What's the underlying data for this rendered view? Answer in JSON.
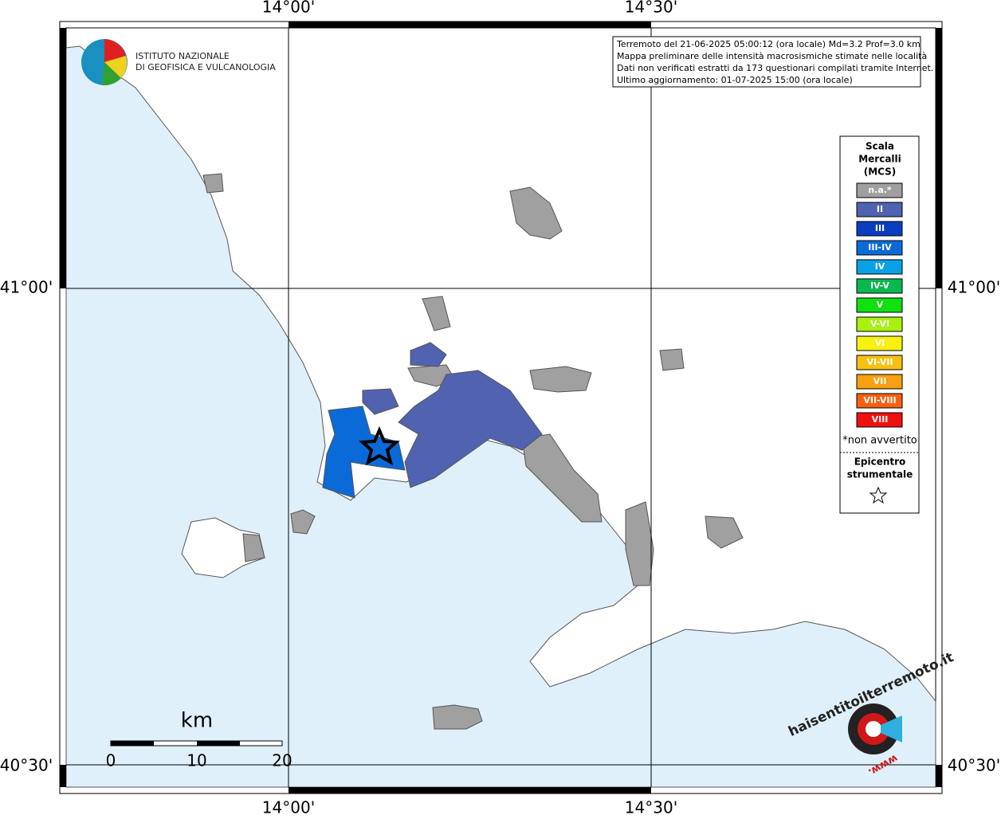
{
  "axes": {
    "lon": [
      "14°00'",
      "14°30'"
    ],
    "lat": [
      "41°00'",
      "40°30'"
    ]
  },
  "logo": {
    "line1": "ISTITUTO NAZIONALE",
    "line2": "DI GEOFISICA E VULCANOLOGIA"
  },
  "info": [
    "Terremoto del 21-06-2025 05:00:12 (ora locale) Md=3.2 Prof=3.0 km",
    "Mappa preliminare delle intensità macrosismiche stimate nelle località",
    "Dati non verificati estratti da 173 questionari compilati tramite Internet.",
    "Ultimo aggiornamento: 01-07-2025 15:00 (ora locale)"
  ],
  "legend": {
    "title": [
      "Scala",
      "Mercalli",
      "(MCS)"
    ],
    "items": [
      {
        "label": "n.a.*",
        "color": "#a0a0a0"
      },
      {
        "label": "II",
        "color": "#5062b0"
      },
      {
        "label": "III",
        "color": "#0a3ec0"
      },
      {
        "label": "III-IV",
        "color": "#0a6ad8"
      },
      {
        "label": "IV",
        "color": "#0aa0e6"
      },
      {
        "label": "IV-V",
        "color": "#0ab850"
      },
      {
        "label": "V",
        "color": "#10e010"
      },
      {
        "label": "V-VI",
        "color": "#a8f010"
      },
      {
        "label": "VI",
        "color": "#f8f010"
      },
      {
        "label": "VI-VII",
        "color": "#f8c010"
      },
      {
        "label": "VII",
        "color": "#f8a010"
      },
      {
        "label": "VII-VIII",
        "color": "#f86010"
      },
      {
        "label": "VIII",
        "color": "#f01010"
      }
    ],
    "note": "*non avvertito",
    "epicenter": [
      "Epicentro",
      "strumentale"
    ]
  },
  "scale_bar": {
    "unit": "km",
    "labels": [
      "0",
      "10",
      "20"
    ]
  },
  "site_logo": {
    "text": "haisentitoilterremoto.it",
    "www": "www."
  }
}
